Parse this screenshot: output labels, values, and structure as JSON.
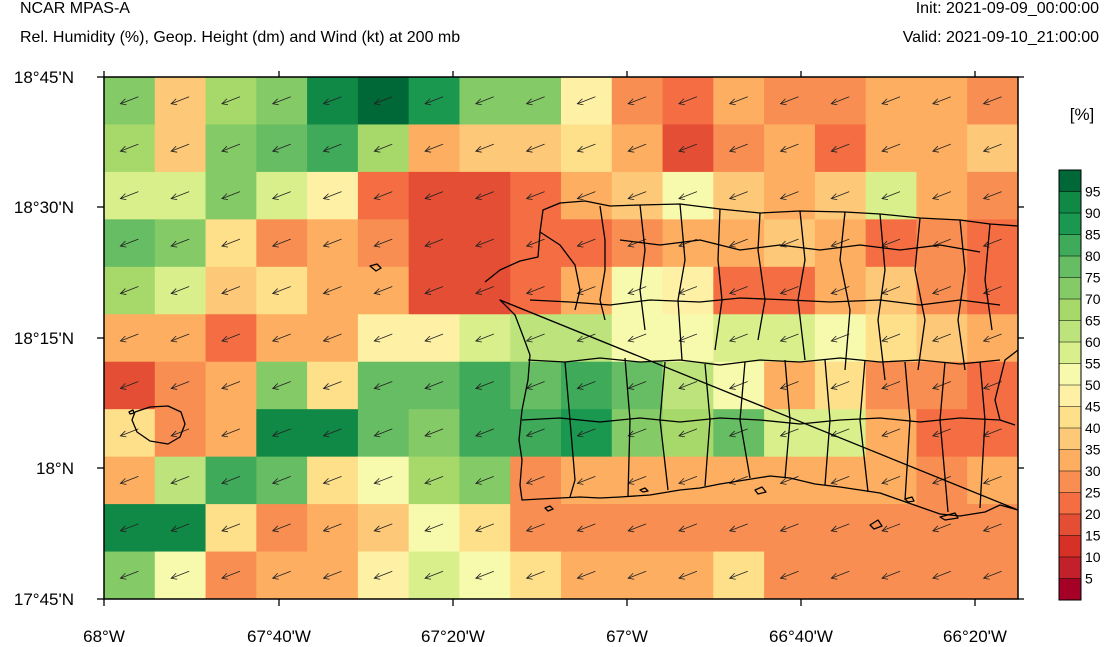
{
  "header": {
    "title": "NCAR MPAS-A",
    "subtitle": "Rel. Humidity (%), Geop. Height (dm) and Wind (kt) at 200 mb",
    "init": "Init: 2021-09-09_00:00:00",
    "valid": "Valid: 2021-09-10_21:00:00"
  },
  "chart_data": {
    "type": "heatmap",
    "title": "Rel. Humidity (%), Geop. Height (dm) and Wind (kt) at 200 mb",
    "units_label": "[%]",
    "x_ticks": [
      "68°W",
      "67°40'W",
      "67°20'W",
      "67°W",
      "66°40'W",
      "66°20'W"
    ],
    "y_ticks": [
      "18°45'N",
      "18°30'N",
      "18°15'N",
      "18°N",
      "17°45'N"
    ],
    "colorbar": {
      "labels": [
        "5",
        "10",
        "15",
        "20",
        "25",
        "30",
        "35",
        "40",
        "45",
        "50",
        "55",
        "60",
        "65",
        "70",
        "75",
        "80",
        "85",
        "90",
        "95"
      ],
      "colors": [
        "#a50026",
        "#c2202a",
        "#d73027",
        "#e44e34",
        "#f46d43",
        "#f88e52",
        "#fdae61",
        "#fdc878",
        "#fee08b",
        "#fef1a5",
        "#f7faad",
        "#d9ef8b",
        "#bce37c",
        "#a6d96a",
        "#84ca66",
        "#66bd63",
        "#3faa59",
        "#1a9850",
        "#108846",
        "#006837"
      ]
    },
    "grid": [
      [
        70,
        35,
        65,
        70,
        90,
        99,
        85,
        70,
        70,
        45,
        25,
        20,
        30,
        25,
        25,
        30,
        30,
        25
      ],
      [
        65,
        35,
        70,
        75,
        80,
        65,
        30,
        35,
        35,
        40,
        30,
        15,
        25,
        30,
        20,
        30,
        30,
        35
      ],
      [
        55,
        55,
        70,
        55,
        45,
        20,
        15,
        15,
        20,
        30,
        35,
        50,
        35,
        30,
        35,
        55,
        30,
        25
      ],
      [
        75,
        70,
        40,
        25,
        30,
        25,
        15,
        15,
        20,
        20,
        25,
        30,
        30,
        35,
        30,
        20,
        25,
        20
      ],
      [
        65,
        55,
        35,
        40,
        30,
        30,
        15,
        15,
        20,
        30,
        50,
        45,
        20,
        20,
        30,
        35,
        25,
        20
      ],
      [
        30,
        30,
        20,
        30,
        30,
        45,
        45,
        55,
        60,
        60,
        50,
        50,
        55,
        55,
        50,
        40,
        35,
        30
      ],
      [
        15,
        25,
        30,
        70,
        40,
        75,
        75,
        80,
        75,
        80,
        75,
        60,
        50,
        30,
        40,
        25,
        25,
        20
      ],
      [
        40,
        25,
        30,
        90,
        90,
        75,
        70,
        80,
        80,
        85,
        70,
        65,
        75,
        55,
        55,
        30,
        20,
        20
      ],
      [
        30,
        60,
        80,
        75,
        40,
        50,
        65,
        70,
        25,
        30,
        30,
        30,
        30,
        30,
        30,
        30,
        25,
        30
      ],
      [
        90,
        90,
        40,
        25,
        30,
        35,
        50,
        40,
        25,
        25,
        25,
        25,
        25,
        25,
        25,
        25,
        25,
        25
      ],
      [
        70,
        50,
        25,
        30,
        30,
        45,
        55,
        50,
        40,
        30,
        30,
        30,
        40,
        25,
        25,
        25,
        25,
        25
      ]
    ]
  }
}
